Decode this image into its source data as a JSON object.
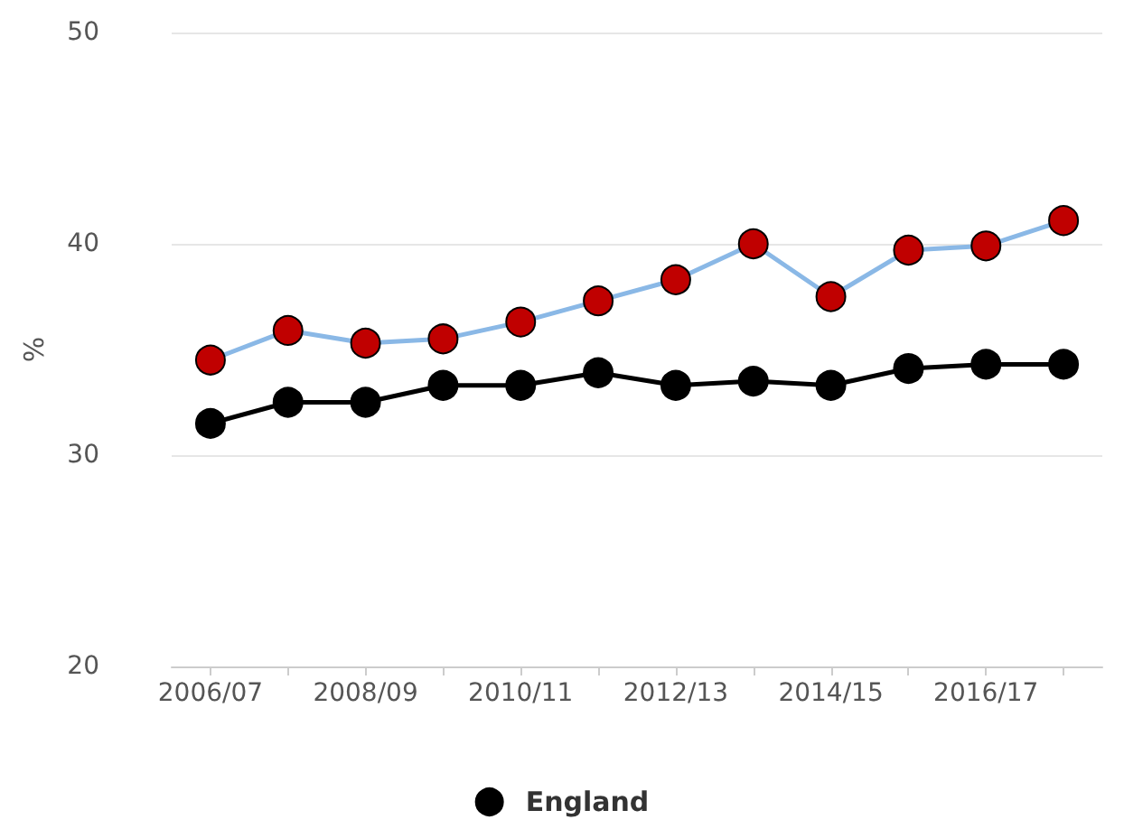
{
  "chart_data": {
    "type": "line",
    "ylabel": "%",
    "categories": [
      "2006/07",
      null,
      "2008/09",
      null,
      "2010/11",
      null,
      "2012/13",
      null,
      "2014/15",
      null,
      "2016/17",
      null
    ],
    "series": [
      {
        "color": "#8ab8e6",
        "colors": [
          "#c00000",
          "#c00000",
          "#c00000",
          "#c00000",
          "#c00000",
          "#c00000",
          "#c00000",
          "#c00000",
          "#c00000",
          "#c00000",
          "#c00000",
          "#c00000"
        ],
        "values": [
          34.5,
          35.9,
          35.3,
          35.5,
          36.3,
          37.3,
          38.3,
          40.0,
          37.5,
          39.7,
          39.9,
          41.1
        ]
      },
      {
        "name": "England",
        "color": "#000000",
        "values": [
          31.5,
          32.5,
          32.5,
          33.3,
          33.3,
          33.9,
          33.3,
          33.5,
          33.3,
          34.1,
          34.3,
          34.3
        ]
      }
    ],
    "ylim": [
      20,
      50
    ],
    "yticks": [
      20,
      30,
      40,
      50
    ],
    "grid": "y",
    "legend": "bottom",
    "marker": "circle"
  }
}
